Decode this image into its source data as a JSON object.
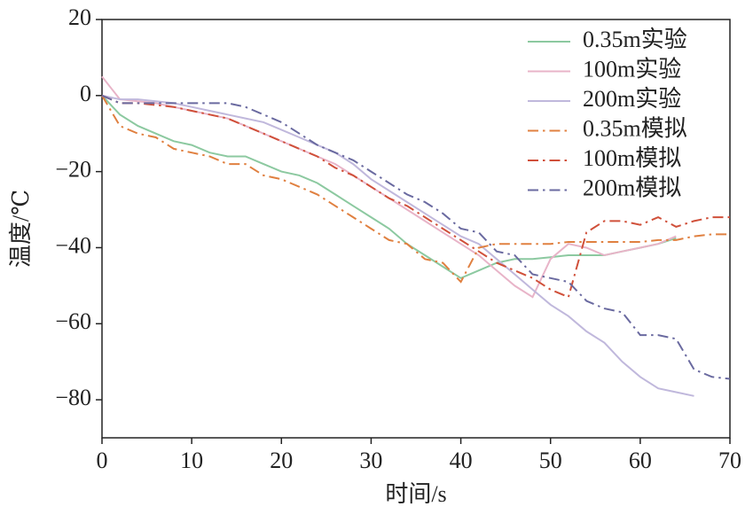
{
  "chart_data": {
    "type": "line",
    "xlabel": "时间/s",
    "ylabel": "温度/℃",
    "x": [
      0,
      2,
      4,
      6,
      8,
      10,
      12,
      14,
      16,
      18,
      20,
      22,
      24,
      26,
      28,
      30,
      32,
      34,
      36,
      38,
      40,
      42,
      44,
      46,
      48,
      50,
      52,
      54,
      56,
      58,
      60,
      62,
      64,
      66,
      68,
      70
    ],
    "xlim": [
      0,
      70
    ],
    "xticks": [
      0,
      10,
      20,
      30,
      40,
      50,
      60,
      70
    ],
    "ylim": [
      -90,
      20
    ],
    "yticks": [
      {
        "value": -80,
        "label": "−80"
      },
      {
        "value": -60,
        "label": "−60"
      },
      {
        "value": -40,
        "label": "−40"
      },
      {
        "value": -20,
        "label": "−20"
      },
      0,
      20
    ],
    "legend": "upper right",
    "series": [
      {
        "name": "0.35m实验",
        "color": "#8cc9a0",
        "linestyle": "solid",
        "values": [
          0,
          -5,
          -8,
          -10,
          -12,
          -13,
          -15,
          -16,
          -16,
          -18,
          -20,
          -21,
          -23,
          -26,
          -29,
          -32,
          -35,
          -39,
          -42,
          -45,
          -48,
          -46,
          -44,
          -43,
          -43,
          -42.5,
          -42,
          -42,
          -42,
          -41,
          -40,
          -39,
          -37.5,
          null,
          null,
          null
        ]
      },
      {
        "name": "100m实验",
        "color": "#e8b4c8",
        "linestyle": "solid",
        "values": [
          5,
          -1,
          -1.5,
          -2,
          -3,
          -4,
          -5,
          -6,
          -8,
          -10,
          -12,
          -14,
          -16,
          -18,
          -21,
          -24,
          -27,
          -30,
          -33,
          -36,
          -39,
          -42,
          -46,
          -50,
          -53,
          -43,
          -39,
          -40,
          -42,
          -41,
          -40,
          -39,
          -37,
          null,
          null,
          null
        ]
      },
      {
        "name": "200m实验",
        "color": "#c0b8dc",
        "linestyle": "solid",
        "values": [
          0,
          -1,
          -1,
          -1.5,
          -2,
          -3,
          -4,
          -5,
          -6,
          -7,
          -9,
          -11,
          -13,
          -15,
          -18,
          -22,
          -25,
          -28,
          -31,
          -34,
          -37,
          -39,
          -43,
          -47,
          -51,
          -55,
          -58,
          -62,
          -65,
          -70,
          -74,
          -77,
          -78,
          -79,
          null,
          null
        ]
      },
      {
        "name": "0.35m模拟",
        "color": "#e08040",
        "linestyle": "dashdot",
        "values": [
          0,
          -8,
          -10,
          -11,
          -14,
          -15,
          -16,
          -18,
          -18,
          -21,
          -22,
          -24,
          -26,
          -29,
          -32,
          -35,
          -38,
          -39,
          -43,
          -44,
          -49,
          -40,
          -39,
          -39,
          -39,
          -39,
          -38.5,
          -38.5,
          -38.5,
          -38.5,
          -38.5,
          -38,
          -38,
          -37,
          -36.5,
          -36.5
        ]
      },
      {
        "name": "100m模拟",
        "color": "#d0503a",
        "linestyle": "dashdot",
        "values": [
          0,
          -2,
          -2,
          -2.5,
          -3,
          -4,
          -5,
          -6,
          -8,
          -10,
          -12,
          -14,
          -16,
          -19,
          -21,
          -24,
          -27,
          -29,
          -32,
          -35,
          -38,
          -41,
          -44,
          -46,
          -48,
          -51,
          -53,
          -36,
          -33,
          -33,
          -34,
          -32,
          -34.5,
          -33,
          -32,
          -32
        ]
      },
      {
        "name": "200m模拟",
        "color": "#6a6aa0",
        "linestyle": "dashdot",
        "values": [
          0,
          -2,
          -2,
          -2,
          -2,
          -2,
          -2,
          -2,
          -3,
          -5,
          -7,
          -10,
          -13,
          -15,
          -17,
          -20,
          -23,
          -26,
          -28,
          -31,
          -35,
          -36,
          -41,
          -42,
          -47,
          -48,
          -49,
          -54,
          -56,
          -57,
          -63,
          -63,
          -64,
          -72,
          -74,
          -74.5
        ]
      }
    ]
  }
}
